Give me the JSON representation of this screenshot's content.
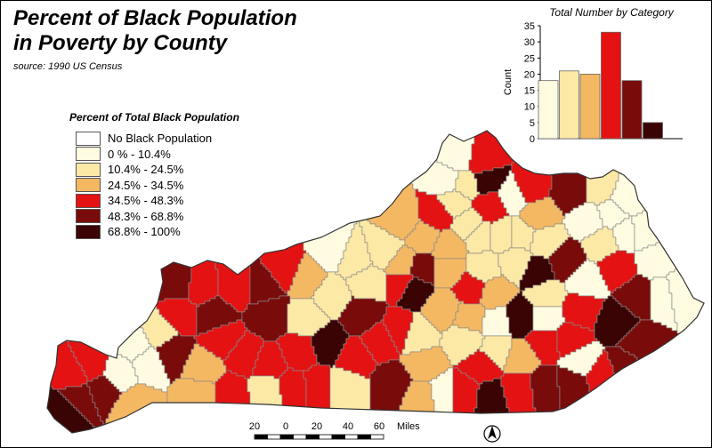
{
  "title": {
    "line1": "Percent of Black Population",
    "line2": "in Poverty by County"
  },
  "source": "source: 1990 US Census",
  "legend": {
    "title": "Percent of Total Black Population",
    "items": [
      {
        "label": "No Black Population",
        "color": "#ffffff"
      },
      {
        "label": "0 % - 10.4%",
        "color": "#fffbe0"
      },
      {
        "label": "10.4% - 24.5%",
        "color": "#fde9a6"
      },
      {
        "label": "24.5% - 34.5%",
        "color": "#f5b862"
      },
      {
        "label": "34.5% - 48.3%",
        "color": "#e41212"
      },
      {
        "label": "48.3% - 68.8%",
        "color": "#7a0b0b"
      },
      {
        "label": "68.8% - 100%",
        "color": "#3a0404"
      }
    ]
  },
  "chart_data": {
    "type": "bar",
    "title": "Total Number by Category",
    "ylabel": "Count",
    "ylim": [
      0,
      35
    ],
    "yticks": [
      0,
      5,
      10,
      15,
      20,
      25,
      30,
      35
    ],
    "values": [
      18,
      21,
      20,
      33,
      18,
      5
    ],
    "colors": [
      "#fffbe0",
      "#fde9a6",
      "#f5b862",
      "#e41212",
      "#7a0b0b",
      "#3a0404"
    ]
  },
  "scalebar": {
    "labels": [
      "20",
      "0",
      "20",
      "40",
      "60"
    ],
    "unit": "Miles"
  },
  "north_arrow": "north-arrow"
}
